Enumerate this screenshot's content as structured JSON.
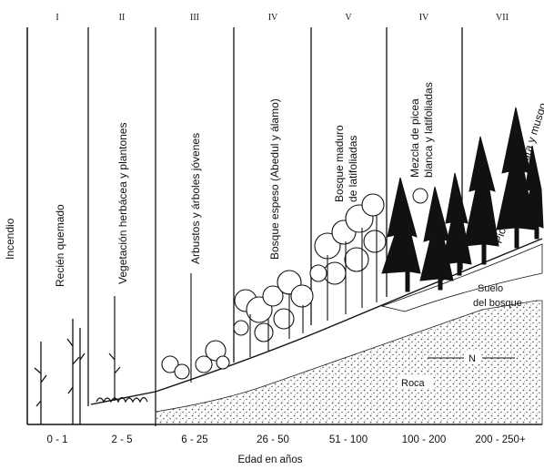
{
  "figure": {
    "y_axis_label": "Incendio",
    "x_axis_label": "Edad en años",
    "stages": [
      {
        "numeral": "I",
        "label_lines": [
          "Recién quemado"
        ],
        "age": "0 - 1"
      },
      {
        "numeral": "II",
        "label_lines": [
          "Vegetación herbácea y plantones"
        ],
        "age": "2 - 5"
      },
      {
        "numeral": "III",
        "label_lines": [
          "Arbustos y árboles jóvenes"
        ],
        "age": "6 - 25"
      },
      {
        "numeral": "IV",
        "label_lines": [
          "Bosque espeso (Abedul y álamo)"
        ],
        "age": "26 - 50"
      },
      {
        "numeral": "V",
        "label_lines": [
          "Bosque maduro",
          "de latifoliadas"
        ],
        "age": "51 - 100"
      },
      {
        "numeral": "IV",
        "label_lines": [
          "Mezcla de picea",
          "blanca y latifoliadas"
        ],
        "age": "100 - 200"
      },
      {
        "numeral": "VII",
        "label_lines": [
          "Picea blanca madura y musgo"
        ],
        "age": "200 - 250+"
      }
    ],
    "soil_label_lines": [
      "Suelo",
      "del bosque"
    ],
    "rock_label": "Roca",
    "north_label": "N"
  },
  "colors": {
    "ink": "#111111",
    "rock_dots": "#5a5a5a",
    "background": "#ffffff"
  }
}
